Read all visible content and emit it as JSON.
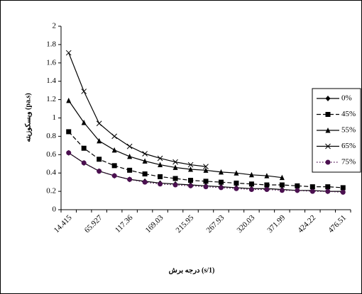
{
  "chart_data": {
    "type": "line",
    "x_label": "درجه برش (s/1)",
    "y_label": "ویسکوزیته (pa.s)",
    "categories": [
      "14.415",
      null,
      "65.927",
      null,
      "117.36",
      null,
      "169.03",
      null,
      "215.95",
      null,
      "267.93",
      null,
      "320.03",
      null,
      "371.99",
      null,
      "424.22",
      null,
      "476.51"
    ],
    "series": [
      {
        "name": "0%",
        "color": "#000000",
        "marker": "diamond",
        "dash": "solid",
        "values": [
          0.62,
          0.51,
          0.42,
          0.37,
          0.33,
          0.31,
          0.29,
          0.28,
          0.27,
          0.26,
          0.25,
          0.24,
          0.23,
          0.23,
          0.22,
          0.21,
          0.21,
          0.2,
          0.2
        ]
      },
      {
        "name": "45%",
        "color": "#000000",
        "marker": "square",
        "dash": "dashed",
        "values": [
          0.85,
          0.67,
          0.55,
          0.48,
          0.43,
          0.39,
          0.36,
          0.34,
          0.32,
          0.31,
          0.3,
          0.29,
          0.28,
          0.27,
          0.27,
          0.26,
          0.25,
          0.25,
          0.24
        ]
      },
      {
        "name": "55%",
        "color": "#000000",
        "marker": "triangle",
        "dash": "solid",
        "values": [
          1.19,
          0.95,
          0.75,
          0.65,
          0.58,
          0.53,
          0.49,
          0.46,
          0.44,
          0.43,
          0.41,
          0.4,
          0.38,
          0.37,
          0.35,
          null,
          null,
          null,
          null
        ]
      },
      {
        "name": "65%",
        "color": "#000000",
        "marker": "x",
        "dash": "solid",
        "values": [
          1.71,
          1.29,
          0.94,
          0.8,
          0.69,
          0.61,
          0.56,
          0.52,
          0.49,
          0.47,
          null,
          null,
          null,
          null,
          null,
          null,
          null,
          null,
          null
        ]
      },
      {
        "name": "75%",
        "color": "#4b1050",
        "marker": "circle",
        "dash": "dotted",
        "values": [
          0.62,
          0.51,
          0.42,
          0.37,
          0.33,
          0.3,
          0.28,
          0.27,
          0.26,
          0.25,
          0.24,
          0.23,
          0.22,
          0.22,
          0.21,
          0.21,
          0.2,
          0.2,
          0.19
        ]
      }
    ],
    "ylim": [
      0,
      2
    ],
    "yticks": [
      0,
      0.2,
      0.4,
      0.6,
      0.8,
      1,
      1.2,
      1.4,
      1.6,
      1.8,
      2
    ],
    "grid": false,
    "legend": "right"
  }
}
